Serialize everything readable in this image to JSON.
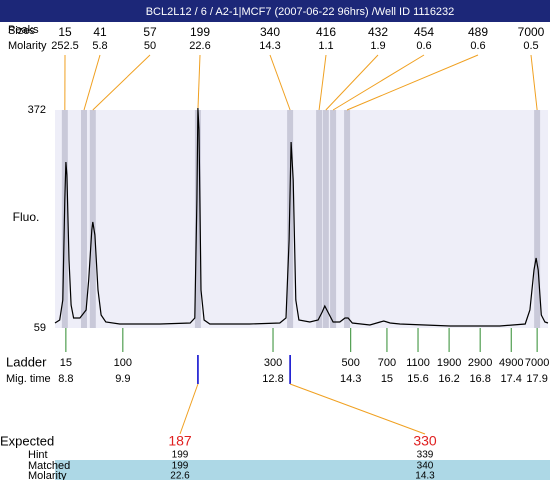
{
  "chart_data": {
    "type": "electropherogram",
    "title": "BCL2L12 / 6 / A2-1|MCF7 (2007-06-22 96hrs) /Well ID 1116232",
    "y_label": "Fluo.",
    "ylim": [
      59,
      372
    ],
    "yticks": [
      59,
      372
    ],
    "xlim": [
      8.59,
      18.11
    ],
    "peaks": {
      "row_labels": [
        "Peaks",
        "Sizes",
        "Molarity"
      ],
      "sizes": [
        15,
        41,
        57,
        199,
        340,
        416,
        432,
        454,
        489,
        7000
      ],
      "molarity": [
        252.5,
        5.8,
        50,
        22.6,
        14.3,
        1.1,
        1.9,
        0.6,
        0.6,
        0.5
      ],
      "times": [
        8.78,
        9.15,
        9.32,
        11.35,
        13.13,
        13.69,
        13.82,
        13.96,
        14.23,
        17.9
      ]
    },
    "trace": {
      "x": [
        8.59,
        8.68,
        8.74,
        8.78,
        8.8,
        8.82,
        8.86,
        8.9,
        8.95,
        9.07,
        9.19,
        9.24,
        9.3,
        9.32,
        9.36,
        9.42,
        9.48,
        9.57,
        9.84,
        10.62,
        11.2,
        11.29,
        11.33,
        11.35,
        11.37,
        11.41,
        11.47,
        11.58,
        12.35,
        12.93,
        13.05,
        13.11,
        13.15,
        13.19,
        13.24,
        13.3,
        13.51,
        13.67,
        13.75,
        13.8,
        13.86,
        13.96,
        14.09,
        14.19,
        14.25,
        14.33,
        14.67,
        14.87,
        14.94,
        15.06,
        15.25,
        16.22,
        17.18,
        17.67,
        17.76,
        17.84,
        17.88,
        17.92,
        17.98,
        18.05,
        18.11
      ],
      "y": [
        66.2,
        70.5,
        99.2,
        242.8,
        297.3,
        278.7,
        156.6,
        92.0,
        73.4,
        73.4,
        84.8,
        127.9,
        199.7,
        211.2,
        192.5,
        113.6,
        77.7,
        67.6,
        64.7,
        64.7,
        66.2,
        73.4,
        242.8,
        374.9,
        343.3,
        113.6,
        70.5,
        64.7,
        64.7,
        66.2,
        73.4,
        185.4,
        326.1,
        271.5,
        99.2,
        70.5,
        67.6,
        70.5,
        82.0,
        90.6,
        82.0,
        67.6,
        67.6,
        73.4,
        73.4,
        66.2,
        63.3,
        67.6,
        69.1,
        66.2,
        64.7,
        61.9,
        61.9,
        64.7,
        84.8,
        142.3,
        159.5,
        142.3,
        77.7,
        67.6,
        66.2
      ],
      "color": "#000000"
    },
    "ladder": {
      "row_labels": [
        "Ladder",
        "Mig. time"
      ],
      "sizes": [
        15,
        100,
        300,
        500,
        700,
        1100,
        1900,
        2900,
        4900,
        7000
      ],
      "times": [
        8.8,
        9.9,
        12.8,
        14.3,
        15,
        15.6,
        16.2,
        16.8,
        17.4,
        17.9
      ],
      "color": "#2e8b2e"
    },
    "expected": {
      "row_labels": [
        "Expected",
        "Hint",
        "Matched",
        "Molarity"
      ],
      "items": [
        {
          "expected": 187,
          "hint": 199,
          "matched": 199,
          "molarity": 22.6
        },
        {
          "expected": 330,
          "hint": 339,
          "matched": 340,
          "molarity": 14.3
        }
      ]
    }
  }
}
